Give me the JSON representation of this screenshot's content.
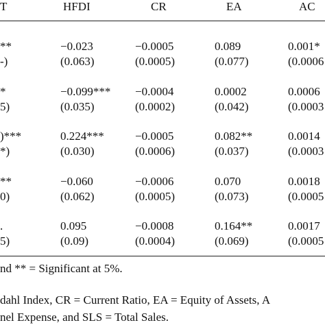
{
  "table": {
    "header": [
      "T",
      "HFDI",
      "CR",
      "EA",
      "AC"
    ],
    "rows": [
      [
        "**",
        "−0.023",
        "−0.0005",
        "0.089",
        "0.001*"
      ],
      [
        "-)",
        "(0.063)",
        "(0.0005)",
        "(0.077)",
        "(0.0006"
      ],
      [
        "*",
        "−0.099***",
        "−0.0004",
        "0.0002",
        "0.0006"
      ],
      [
        "5)",
        "(0.035)",
        "(0.0002)",
        "(0.042)",
        "(0.0003"
      ],
      [
        ")***",
        "0.224***",
        "−0.0005",
        "0.082**",
        "0.0014"
      ],
      [
        "*)",
        "(0.030)",
        "(0.0006)",
        "(0.037)",
        "(0.0003"
      ],
      [
        "**",
        "−0.060",
        "−0.0006",
        "0.070",
        "0.0018"
      ],
      [
        "0)",
        "(0.062)",
        "(0.0005)",
        "(0.073)",
        "(0.0005"
      ],
      [
        ".",
        "0.095",
        "−0.0008",
        "0.164**",
        "0.0017"
      ],
      [
        "5)",
        "(0.09)",
        "(0.0004)",
        "(0.069)",
        "(0.0005"
      ]
    ]
  },
  "footnotes": [
    "nd ** = Significant at 5%.",
    "dahl Index, CR = Current Ratio, EA = Equity of Assets, A",
    "nel Expense, and SLS = Total Sales."
  ]
}
